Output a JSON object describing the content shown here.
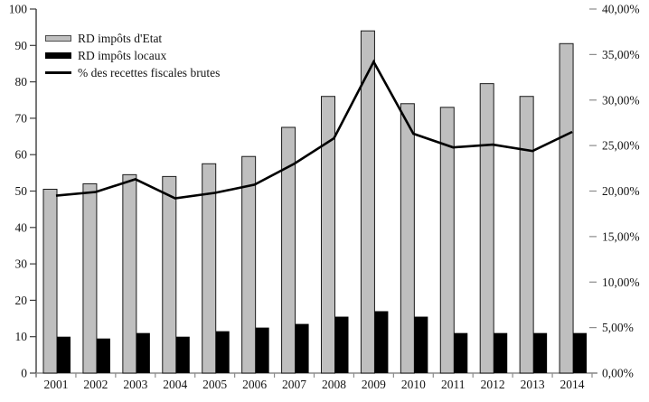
{
  "chart_data": {
    "type": "bar",
    "subtype": "clustered-bar-with-line-combo",
    "title": "",
    "categories": [
      "2001",
      "2002",
      "2003",
      "2004",
      "2005",
      "2006",
      "2007",
      "2008",
      "2009",
      "2010",
      "2011",
      "2012",
      "2013",
      "2014"
    ],
    "series": [
      {
        "name": "RD impôts d'Etat",
        "type": "bar",
        "axis": "left",
        "color": "#bfbfbf",
        "values": [
          50.5,
          52,
          54.5,
          54,
          57.5,
          59.5,
          67.5,
          76,
          94,
          74,
          73,
          79.5,
          76,
          90.5
        ]
      },
      {
        "name": "RD impôts locaux",
        "type": "bar",
        "axis": "left",
        "color": "#000000",
        "values": [
          10,
          9.5,
          11,
          10,
          11.5,
          12.5,
          13.5,
          15.5,
          17,
          15.5,
          11,
          11,
          11,
          11
        ]
      },
      {
        "name": "% des recettes fiscales brutes",
        "type": "line",
        "axis": "right",
        "color": "#000000",
        "values": [
          19.5,
          19.9,
          21.3,
          19.2,
          19.8,
          20.7,
          23.0,
          25.8,
          34.2,
          26.3,
          24.8,
          25.1,
          24.4,
          26.5
        ]
      }
    ],
    "left_axis": {
      "min": 0,
      "max": 100,
      "step": 10,
      "labels": [
        "0",
        "10",
        "20",
        "30",
        "40",
        "50",
        "60",
        "70",
        "80",
        "90",
        "100"
      ]
    },
    "right_axis": {
      "min": 0,
      "max": 40,
      "step": 5,
      "labels": [
        "0,00%",
        "5,00%",
        "10,00%",
        "15,00%",
        "20,00%",
        "25,00%",
        "30,00%",
        "35,00%",
        "40,00%"
      ]
    },
    "legend_position": "top-left-inside",
    "grid": false,
    "colors": {
      "bar_fill_gray": "#bfbfbf",
      "bar_border": "#1a1a1a",
      "series_black": "#000000",
      "axis_left": "#3d3d3d",
      "axis_bottom": "#8c8c8c",
      "text": "#141414"
    }
  }
}
